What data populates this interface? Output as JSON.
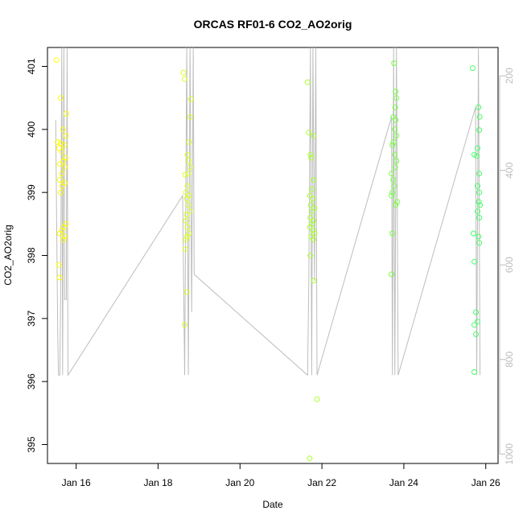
{
  "chart_data": {
    "type": "scatter",
    "title": "ORCAS RF01-6 CO2_AO2orig",
    "xlabel": "Date",
    "ylabel": "CO2_AO2orig",
    "x_ticks": [
      "Jan 16",
      "Jan 18",
      "Jan 20",
      "Jan 22",
      "Jan 24",
      "Jan 26"
    ],
    "x_tick_days": [
      16,
      18,
      20,
      22,
      24,
      26
    ],
    "xlim": [
      15.3,
      26.3
    ],
    "ylim": [
      394.7,
      401.3
    ],
    "y_ticks": [
      395,
      396,
      397,
      398,
      399,
      400,
      401
    ],
    "right_axis": {
      "ticks": [
        200,
        400,
        600,
        800,
        1000
      ],
      "lim": [
        1020,
        140
      ],
      "color": "#bdbdbd"
    },
    "grid": false,
    "line_color": "#bdbdbd",
    "flight_colors": [
      "#ffff00",
      "#ddff22",
      "#aaff33",
      "#77ff44",
      "#44ff66"
    ],
    "flights": [
      {
        "points": [
          [
            15.52,
            401.1
          ],
          [
            15.62,
            400.5
          ],
          [
            15.76,
            400.25
          ],
          [
            15.68,
            400.0
          ],
          [
            15.75,
            399.9
          ],
          [
            15.55,
            399.8
          ],
          [
            15.62,
            399.78
          ],
          [
            15.71,
            399.75
          ],
          [
            15.58,
            399.7
          ],
          [
            15.65,
            399.65
          ],
          [
            15.74,
            399.55
          ],
          [
            15.69,
            399.5
          ],
          [
            15.6,
            399.45
          ],
          [
            15.72,
            399.4
          ],
          [
            15.65,
            399.3
          ],
          [
            15.6,
            399.2
          ],
          [
            15.72,
            399.15
          ],
          [
            15.66,
            399.1
          ],
          [
            15.62,
            399.0
          ],
          [
            15.75,
            398.5
          ],
          [
            15.7,
            398.45
          ],
          [
            15.65,
            398.4
          ],
          [
            15.6,
            398.35
          ],
          [
            15.72,
            398.3
          ],
          [
            15.69,
            398.25
          ],
          [
            15.58,
            397.85
          ],
          [
            15.6,
            397.65
          ]
        ],
        "line": [
          [
            15.5,
            400.15
          ],
          [
            15.55,
            396.8
          ],
          [
            15.57,
            396.1
          ],
          [
            15.6,
            396.1
          ],
          [
            15.62,
            397.3
          ],
          [
            15.65,
            401.3
          ],
          [
            15.67,
            396.1
          ],
          [
            15.7,
            401.3
          ],
          [
            15.72,
            397.3
          ],
          [
            15.76,
            397.3
          ],
          [
            15.78,
            401.3
          ],
          [
            15.8,
            396.1
          ],
          [
            18.6,
            398.95
          ],
          [
            18.65,
            396.1
          ],
          [
            18.7,
            401.3
          ],
          [
            18.74,
            396.1
          ],
          [
            18.78,
            401.3
          ],
          [
            18.82,
            397.1
          ],
          [
            18.86,
            401.3
          ],
          [
            18.88,
            397.7
          ],
          [
            21.65,
            396.1
          ],
          [
            21.68,
            397.6
          ],
          [
            21.72,
            401.3
          ],
          [
            21.75,
            396.1
          ],
          [
            21.78,
            401.3
          ],
          [
            21.82,
            397.6
          ],
          [
            21.85,
            401.3
          ],
          [
            21.88,
            396.1
          ],
          [
            23.7,
            400.2
          ],
          [
            23.72,
            396.1
          ],
          [
            23.75,
            401.3
          ],
          [
            23.78,
            396.1
          ],
          [
            23.82,
            401.3
          ],
          [
            23.86,
            396.1
          ],
          [
            25.75,
            400.35
          ],
          [
            25.78,
            396.1
          ],
          [
            25.82,
            401.3
          ],
          [
            25.86,
            396.1
          ]
        ]
      },
      {
        "points": [
          [
            18.62,
            400.9
          ],
          [
            18.65,
            400.8
          ],
          [
            18.8,
            400.48
          ],
          [
            18.78,
            400.2
          ],
          [
            18.76,
            399.8
          ],
          [
            18.72,
            399.6
          ],
          [
            18.75,
            399.5
          ],
          [
            18.78,
            399.4
          ],
          [
            18.74,
            399.3
          ],
          [
            18.66,
            399.28
          ],
          [
            18.72,
            399.1
          ],
          [
            18.68,
            399.0
          ],
          [
            18.76,
            398.95
          ],
          [
            18.7,
            398.9
          ],
          [
            18.74,
            398.8
          ],
          [
            18.78,
            398.7
          ],
          [
            18.7,
            398.65
          ],
          [
            18.68,
            398.55
          ],
          [
            18.72,
            398.45
          ],
          [
            18.75,
            398.35
          ],
          [
            18.71,
            398.3
          ],
          [
            18.68,
            398.25
          ],
          [
            18.66,
            398.1
          ],
          [
            18.7,
            397.42
          ],
          [
            18.65,
            396.9
          ]
        ],
        "line": []
      },
      {
        "points": [
          [
            21.65,
            400.75
          ],
          [
            21.68,
            399.95
          ],
          [
            21.72,
            399.6
          ],
          [
            21.8,
            399.9
          ],
          [
            21.74,
            399.55
          ],
          [
            21.8,
            399.2
          ],
          [
            21.76,
            399.05
          ],
          [
            21.71,
            398.95
          ],
          [
            21.78,
            398.9
          ],
          [
            21.73,
            398.8
          ],
          [
            21.82,
            398.75
          ],
          [
            21.76,
            398.7
          ],
          [
            21.72,
            398.6
          ],
          [
            21.79,
            398.55
          ],
          [
            21.75,
            398.5
          ],
          [
            21.71,
            398.45
          ],
          [
            21.78,
            398.4
          ],
          [
            21.82,
            398.35
          ],
          [
            21.74,
            398.3
          ],
          [
            21.79,
            398.25
          ],
          [
            21.72,
            398.0
          ],
          [
            21.8,
            397.6
          ],
          [
            21.88,
            395.72
          ],
          [
            21.7,
            394.78
          ]
        ],
        "line": []
      },
      {
        "points": [
          [
            23.76,
            401.05
          ],
          [
            23.8,
            400.6
          ],
          [
            23.82,
            400.5
          ],
          [
            23.79,
            400.35
          ],
          [
            23.74,
            400.2
          ],
          [
            23.8,
            400.15
          ],
          [
            23.78,
            400.0
          ],
          [
            23.82,
            399.9
          ],
          [
            23.75,
            399.8
          ],
          [
            23.72,
            399.75
          ],
          [
            23.78,
            399.6
          ],
          [
            23.82,
            399.5
          ],
          [
            23.79,
            399.4
          ],
          [
            23.7,
            399.3
          ],
          [
            23.74,
            399.2
          ],
          [
            23.76,
            399.1
          ],
          [
            23.72,
            399.0
          ],
          [
            23.7,
            398.95
          ],
          [
            23.84,
            398.85
          ],
          [
            23.8,
            398.8
          ],
          [
            23.72,
            398.35
          ],
          [
            23.7,
            397.7
          ]
        ],
        "line": []
      },
      {
        "points": [
          [
            25.68,
            400.97
          ],
          [
            25.82,
            400.35
          ],
          [
            25.85,
            400.2
          ],
          [
            25.84,
            399.99
          ],
          [
            25.8,
            399.7
          ],
          [
            25.72,
            399.6
          ],
          [
            25.78,
            399.58
          ],
          [
            25.84,
            399.3
          ],
          [
            25.8,
            399.1
          ],
          [
            25.84,
            399.0
          ],
          [
            25.83,
            398.85
          ],
          [
            25.86,
            398.8
          ],
          [
            25.8,
            398.7
          ],
          [
            25.84,
            398.6
          ],
          [
            25.7,
            398.35
          ],
          [
            25.82,
            398.3
          ],
          [
            25.84,
            398.2
          ],
          [
            25.72,
            397.9
          ],
          [
            25.76,
            397.1
          ],
          [
            25.8,
            396.95
          ],
          [
            25.72,
            396.9
          ],
          [
            25.76,
            396.75
          ],
          [
            25.72,
            396.15
          ]
        ],
        "line": []
      }
    ]
  }
}
